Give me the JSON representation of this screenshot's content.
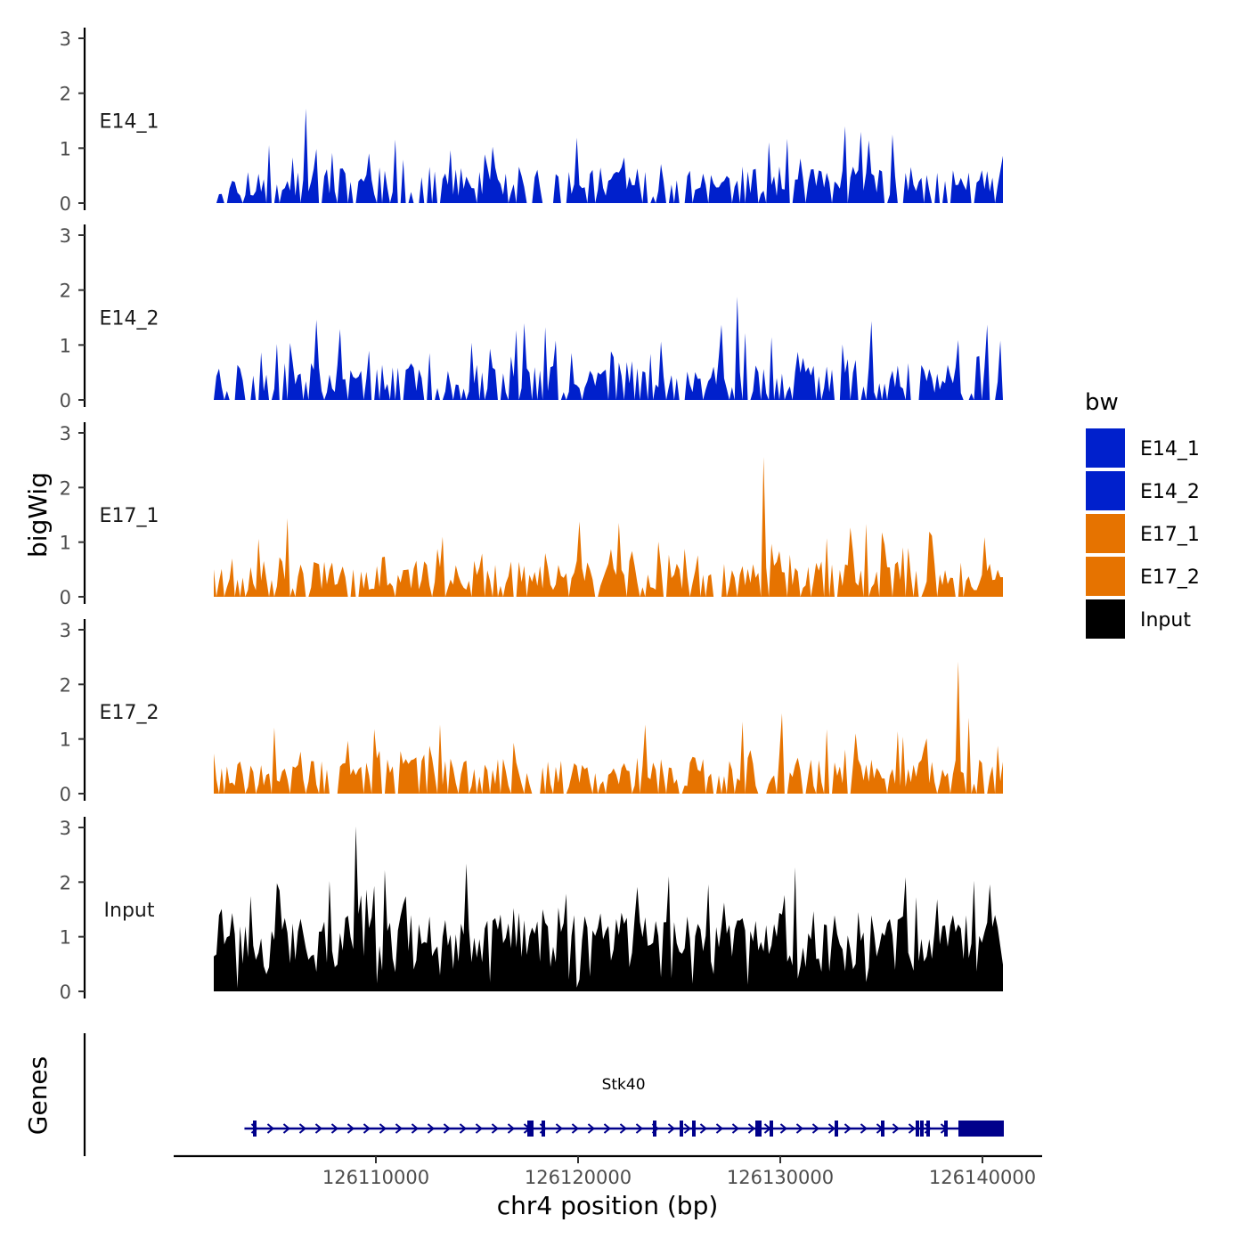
{
  "chart_data": {
    "type": "area",
    "chromosome": "chr4",
    "x_range": [
      126102000,
      126141000
    ],
    "x_ticks": [
      126110000,
      126120000,
      126130000,
      126140000
    ],
    "x_tick_labels": [
      "126110000",
      "126120000",
      "126130000",
      "126140000"
    ],
    "xlabel": "chr4 position (bp)",
    "ylabel": "bigWig",
    "ylim": [
      0,
      3
    ],
    "y_ticks": [
      0,
      1,
      2,
      3
    ],
    "y_tick_labels": [
      "0",
      "1",
      "2",
      "3"
    ],
    "legend_title": "bw",
    "legend_position": "right",
    "series": [
      {
        "name": "E14_1",
        "label": "E14_1",
        "color": "#0020CC",
        "max": 1.72,
        "seed": 11
      },
      {
        "name": "E14_2",
        "label": "E14_2",
        "color": "#0020CC",
        "max": 1.88,
        "seed": 23
      },
      {
        "name": "E17_1",
        "label": "E17_1",
        "color": "#E67300",
        "max": 2.56,
        "seed": 37
      },
      {
        "name": "E17_2",
        "label": "E17_2",
        "color": "#E67300",
        "max": 2.42,
        "seed": 53
      },
      {
        "name": "Input",
        "label": "Input",
        "color": "#000000",
        "max": 3.02,
        "seed": 71
      }
    ],
    "genes_track": {
      "title": "Genes",
      "color": "#00008B",
      "genes": [
        {
          "name": "Stk40",
          "start": 126103500,
          "end": 126141000,
          "strand": "+"
        }
      ]
    }
  }
}
